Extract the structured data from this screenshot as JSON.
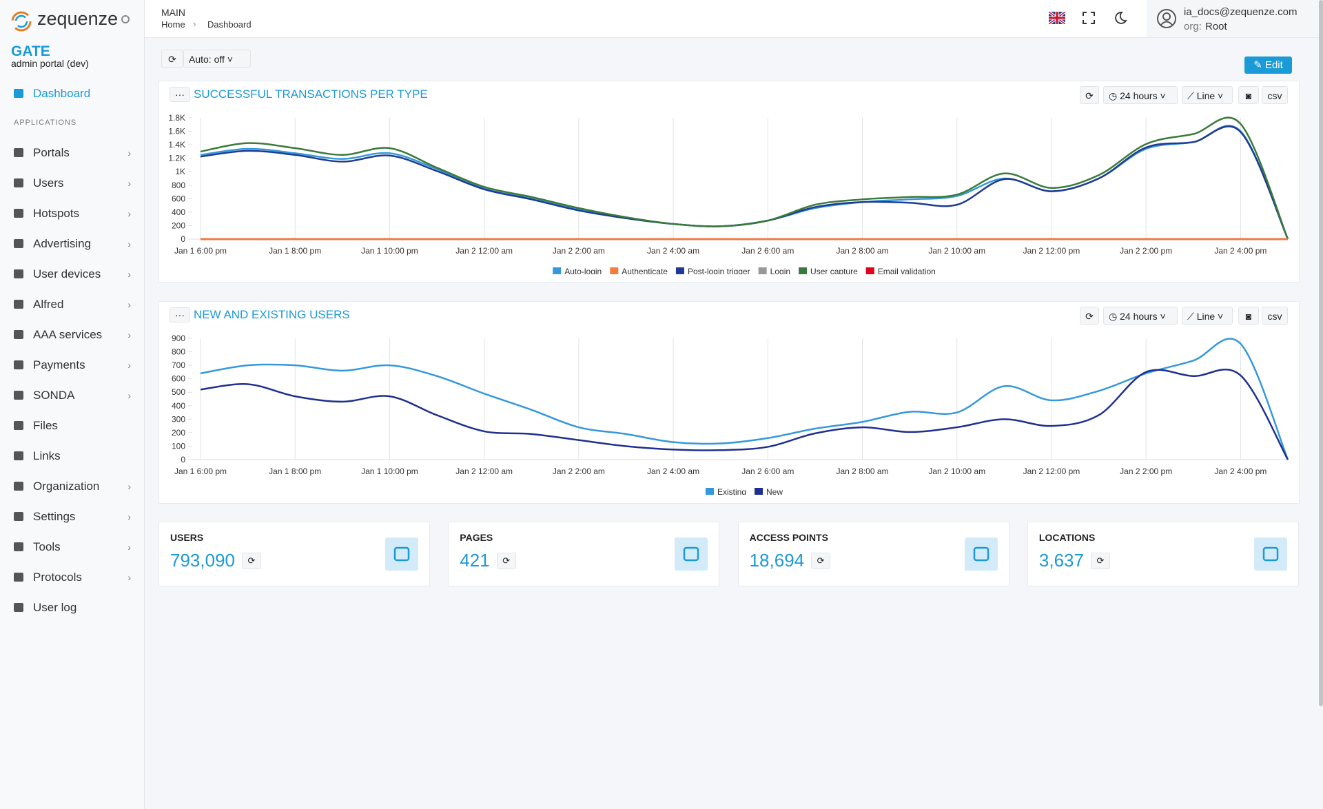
{
  "sidebar": {
    "brand": "zequenze",
    "app": "GATE",
    "subtitle": "admin portal (dev)",
    "section": "APPLICATIONS",
    "items": [
      {
        "label": "Dashboard",
        "active": true,
        "submenu": false
      },
      {
        "label": "Portals",
        "active": false,
        "submenu": true
      },
      {
        "label": "Users",
        "active": false,
        "submenu": true
      },
      {
        "label": "Hotspots",
        "active": false,
        "submenu": true
      },
      {
        "label": "Advertising",
        "active": false,
        "submenu": true
      },
      {
        "label": "User devices",
        "active": false,
        "submenu": true
      },
      {
        "label": "Alfred",
        "active": false,
        "submenu": true
      },
      {
        "label": "AAA services",
        "active": false,
        "submenu": true
      },
      {
        "label": "Payments",
        "active": false,
        "submenu": true
      },
      {
        "label": "SONDA",
        "active": false,
        "submenu": true
      },
      {
        "label": "Files",
        "active": false,
        "submenu": false
      },
      {
        "label": "Links",
        "active": false,
        "submenu": false
      },
      {
        "label": "Organization",
        "active": false,
        "submenu": true
      },
      {
        "label": "Settings",
        "active": false,
        "submenu": true
      },
      {
        "label": "Tools",
        "active": false,
        "submenu": true
      },
      {
        "label": "Protocols",
        "active": false,
        "submenu": true
      },
      {
        "label": "User log",
        "active": false,
        "submenu": false
      }
    ]
  },
  "header": {
    "section": "MAIN",
    "breadcrumb": [
      "Home",
      "Dashboard"
    ],
    "user": "ia_docs@zequenze.com",
    "org_label": "org:",
    "org": "Root"
  },
  "toolbar": {
    "auto_refresh": "Auto: off",
    "edit": "Edit"
  },
  "chart_data": [
    {
      "type": "line",
      "title": "SUCCESSFUL TRANSACTIONS PER TYPE",
      "range": "24 hours",
      "view": "Line",
      "export": "csv",
      "categories": [
        "Jan 1 6:00 pm",
        null,
        "Jan 1 8:00 pm",
        null,
        "Jan 1 10:00 pm",
        null,
        "Jan 2 12:00 am",
        null,
        "Jan 2 2:00 am",
        null,
        "Jan 2 4:00 am",
        null,
        "Jan 2 6:00 am",
        null,
        "Jan 2 8:00 am",
        null,
        "Jan 2 10:00 am",
        null,
        "Jan 2 12:00 pm",
        null,
        "Jan 2 2:00 pm",
        null,
        "Jan 2 4:00 pm",
        null
      ],
      "series": [
        {
          "name": "Auto-login",
          "color": "#3498db",
          "values": [
            1250,
            1340,
            1275,
            1190,
            1275,
            1040,
            750,
            600,
            440,
            310,
            225,
            190,
            275,
            460,
            550,
            590,
            640,
            900,
            710,
            900,
            1340,
            1440,
            1600,
            0
          ]
        },
        {
          "name": "Authenticate",
          "color": "#f47c3c",
          "values": [
            0,
            0,
            0,
            0,
            0,
            0,
            0,
            0,
            0,
            0,
            0,
            0,
            0,
            0,
            0,
            0,
            0,
            0,
            0,
            0,
            0,
            0,
            0,
            0
          ]
        },
        {
          "name": "Post-login trigger",
          "color": "#1f3a93",
          "values": [
            1225,
            1310,
            1250,
            1150,
            1240,
            1010,
            740,
            590,
            425,
            310,
            225,
            190,
            275,
            475,
            550,
            540,
            510,
            890,
            710,
            900,
            1360,
            1440,
            1590,
            0
          ]
        },
        {
          "name": "Login",
          "color": "#999999",
          "values": [
            0,
            0,
            0,
            0,
            0,
            0,
            0,
            0,
            0,
            0,
            0,
            0,
            0,
            0,
            0,
            0,
            0,
            0,
            0,
            0,
            0,
            0,
            0,
            0
          ]
        },
        {
          "name": "User capture",
          "color": "#3a7a3a",
          "values": [
            1300,
            1425,
            1350,
            1250,
            1350,
            1060,
            775,
            625,
            460,
            325,
            225,
            190,
            275,
            510,
            590,
            625,
            660,
            975,
            760,
            950,
            1410,
            1560,
            1710,
            0
          ]
        },
        {
          "name": "Email validation",
          "color": "#e3001b",
          "values": [
            0,
            0,
            0,
            0,
            0,
            0,
            0,
            0,
            0,
            0,
            0,
            0,
            0,
            0,
            0,
            0,
            0,
            0,
            0,
            0,
            0,
            0,
            0,
            0
          ]
        }
      ],
      "ylim": [
        0,
        1800
      ],
      "yticks": [
        0,
        200,
        400,
        600,
        800,
        {
          "value": 1000,
          "label": "1K"
        },
        {
          "value": 1200,
          "label": "1.2K"
        },
        {
          "value": 1400,
          "label": "1.4K"
        },
        {
          "value": 1600,
          "label": "1.6K"
        },
        {
          "value": 1800,
          "label": "1.8K"
        }
      ],
      "grid": true,
      "legend": "bottom"
    },
    {
      "type": "line",
      "title": "NEW AND EXISTING USERS",
      "range": "24 hours",
      "view": "Line",
      "export": "csv",
      "categories": [
        "Jan 1 6:00 pm",
        null,
        "Jan 1 8:00 pm",
        null,
        "Jan 1 10:00 pm",
        null,
        "Jan 2 12:00 am",
        null,
        "Jan 2 2:00 am",
        null,
        "Jan 2 4:00 am",
        null,
        "Jan 2 6:00 am",
        null,
        "Jan 2 8:00 am",
        null,
        "Jan 2 10:00 am",
        null,
        "Jan 2 12:00 pm",
        null,
        "Jan 2 2:00 pm",
        null,
        "Jan 2 4:00 pm",
        null
      ],
      "series": [
        {
          "name": "Existing",
          "color": "#3498db",
          "values": [
            640,
            700,
            700,
            660,
            700,
            620,
            490,
            370,
            240,
            190,
            130,
            120,
            160,
            230,
            280,
            355,
            350,
            545,
            440,
            510,
            640,
            735,
            860,
            0
          ]
        },
        {
          "name": "New",
          "color": "#1f2f8f",
          "values": [
            520,
            560,
            470,
            430,
            470,
            330,
            210,
            190,
            145,
            100,
            75,
            70,
            95,
            195,
            240,
            205,
            240,
            300,
            250,
            330,
            650,
            620,
            625,
            0
          ]
        }
      ],
      "ylim": [
        0,
        900
      ],
      "yticks": [
        0,
        100,
        200,
        300,
        400,
        500,
        600,
        700,
        800,
        900
      ],
      "grid": true,
      "legend": "bottom"
    }
  ],
  "stats": [
    {
      "label": "USERS",
      "value": "793,090"
    },
    {
      "label": "PAGES",
      "value": "421"
    },
    {
      "label": "ACCESS POINTS",
      "value": "18,694"
    },
    {
      "label": "LOCATIONS",
      "value": "3,637"
    }
  ]
}
